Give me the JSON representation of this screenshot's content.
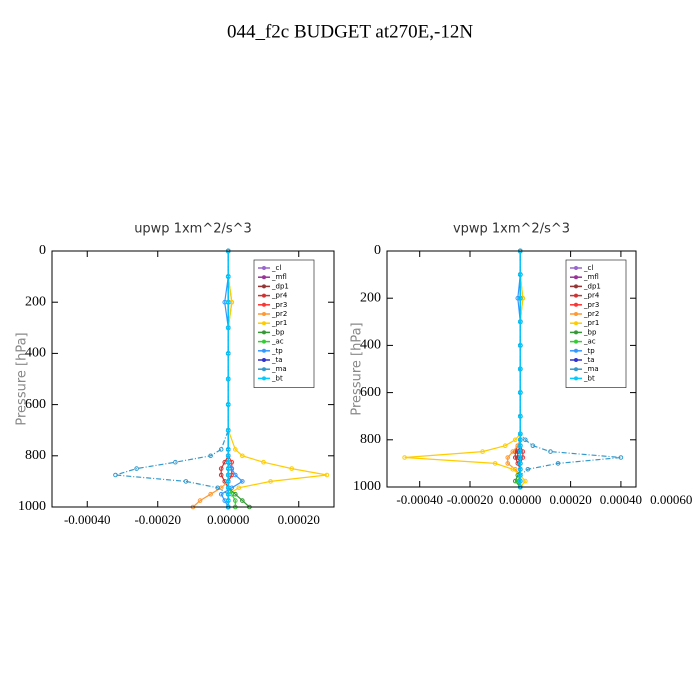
{
  "title": "044_f2c  BUDGET at270E,-12N",
  "chart_data": [
    {
      "type": "line",
      "title": "upwp  1xm^2/s^3",
      "ylabel": "Pressure [hPa]",
      "y": [
        0,
        100,
        200,
        300,
        400,
        500,
        600,
        700,
        775,
        800,
        825,
        850,
        875,
        900,
        925,
        950,
        975,
        1000
      ],
      "xlim": [
        -0.0005,
        0.0003
      ],
      "xticks": [
        {
          "value": -0.0004,
          "label": "-0.00040"
        },
        {
          "value": -0.0002,
          "label": "-0.00020"
        },
        {
          "value": 0,
          "label": "0.00000"
        },
        {
          "value": 0.0002,
          "label": "0.00020"
        }
      ],
      "ylim": [
        1000,
        0
      ],
      "yticks": [
        0,
        200,
        400,
        600,
        800,
        1000
      ],
      "series": [
        {
          "name": "_cl",
          "color": "#9966cc",
          "values": [
            0,
            0,
            0,
            0,
            0,
            0,
            0,
            0,
            0,
            0,
            0,
            0,
            0,
            0,
            0,
            0,
            0,
            0
          ]
        },
        {
          "name": "_mfl",
          "color": "#993399",
          "values": [
            0,
            0,
            0,
            0,
            0,
            0,
            0,
            0,
            0,
            0,
            0,
            0,
            0,
            0,
            0,
            0,
            0,
            0
          ]
        },
        {
          "name": "_dp1",
          "color": "#993333",
          "values": [
            0,
            0,
            0,
            0,
            0,
            0,
            0,
            0,
            0,
            0,
            0,
            1e-05,
            1e-05,
            0,
            0,
            0,
            0,
            0
          ]
        },
        {
          "name": "_pr4",
          "color": "#cc3333",
          "values": [
            0,
            0,
            0,
            0,
            0,
            0,
            0,
            0,
            0,
            0,
            -1e-05,
            -2e-05,
            -2e-05,
            -1e-05,
            0,
            0,
            0,
            0
          ]
        },
        {
          "name": "_pr3",
          "color": "#ff3333",
          "values": [
            0,
            0,
            0,
            0,
            0,
            0,
            0,
            0,
            0,
            0,
            1e-05,
            1e-05,
            1e-05,
            0,
            0,
            0,
            0,
            0
          ]
        },
        {
          "name": "_pr2",
          "color": "#ff9933",
          "values": [
            0,
            0,
            1e-05,
            0,
            0,
            0,
            0,
            0,
            0,
            0,
            0,
            0,
            0,
            0,
            -2e-05,
            -5e-05,
            -8e-05,
            -0.0001
          ]
        },
        {
          "name": "_pr1",
          "color": "#ffcc00",
          "values": [
            0,
            0,
            1e-05,
            0,
            0,
            0,
            0,
            0,
            2e-05,
            4e-05,
            0.0001,
            0.00018,
            0.00028,
            0.00012,
            3e-05,
            0,
            0,
            0
          ]
        },
        {
          "name": "_bp",
          "color": "#339933",
          "values": [
            0,
            0,
            0,
            0,
            0,
            0,
            0,
            0,
            0,
            0,
            0,
            0,
            0,
            0,
            0,
            2e-05,
            4e-05,
            6e-05
          ]
        },
        {
          "name": "_ac",
          "color": "#33cc33",
          "values": [
            0,
            0,
            0,
            0,
            0,
            0,
            0,
            0,
            0,
            0,
            0,
            0,
            0,
            0,
            0,
            1e-05,
            2e-05,
            2e-05
          ]
        },
        {
          "name": "_tp",
          "color": "#3399ff",
          "values": [
            0,
            0,
            -1e-05,
            0,
            0,
            0,
            0,
            0,
            0,
            0,
            0,
            1e-05,
            2e-05,
            4e-05,
            1e-05,
            -2e-05,
            -1e-05,
            0
          ]
        },
        {
          "name": "_ta",
          "color": "#3333cc",
          "values": [
            0,
            0,
            0,
            0,
            0,
            0,
            0,
            0,
            0,
            0,
            0,
            0,
            0,
            0,
            0,
            0,
            0,
            0
          ]
        },
        {
          "name": "_ma",
          "color": "#3399cc",
          "values": [
            0,
            0,
            0,
            0,
            0,
            0,
            0,
            0,
            -2e-05,
            -5e-05,
            -0.00015,
            -0.00026,
            -0.00032,
            -0.00012,
            -3e-05,
            0,
            0,
            0
          ]
        },
        {
          "name": "_bt",
          "color": "#00ccff",
          "values": [
            0,
            0,
            0,
            0,
            0,
            0,
            0,
            0,
            0,
            0,
            0,
            0,
            0,
            0,
            0,
            0,
            0,
            0
          ]
        }
      ]
    },
    {
      "type": "line",
      "title": "vpwp  1xm^2/s^3",
      "ylabel": "Pressure [hPa]",
      "y": [
        0,
        100,
        200,
        300,
        400,
        500,
        600,
        700,
        775,
        800,
        825,
        850,
        875,
        900,
        925,
        950,
        975,
        1000
      ],
      "xlim": [
        -0.00053,
        0.00046
      ],
      "xticks": [
        {
          "value": -0.0004,
          "label": "-0.00040"
        },
        {
          "value": -0.0002,
          "label": "-0.00020"
        },
        {
          "value": 0,
          "label": "0.00000"
        },
        {
          "value": 0.0002,
          "label": "0.00020"
        },
        {
          "value": 0.0004,
          "label": "0.00040"
        },
        {
          "value": 0.0006,
          "label": "0.00060"
        }
      ],
      "ylim": [
        1000,
        0
      ],
      "yticks": [
        0,
        200,
        400,
        600,
        800,
        1000
      ],
      "series": [
        {
          "name": "_cl",
          "color": "#9966cc",
          "values": [
            0,
            0,
            0,
            0,
            0,
            0,
            0,
            0,
            0,
            0,
            0,
            0,
            0,
            0,
            0,
            0,
            0,
            0
          ]
        },
        {
          "name": "_mfl",
          "color": "#993399",
          "values": [
            0,
            0,
            0,
            0,
            0,
            0,
            0,
            0,
            0,
            0,
            0,
            0,
            0,
            0,
            0,
            0,
            0,
            0
          ]
        },
        {
          "name": "_dp1",
          "color": "#993333",
          "values": [
            0,
            0,
            0,
            0,
            0,
            0,
            0,
            0,
            0,
            0,
            0,
            -1e-05,
            -1e-05,
            0,
            0,
            0,
            0,
            0
          ]
        },
        {
          "name": "_pr4",
          "color": "#cc3333",
          "values": [
            0,
            0,
            0,
            0,
            0,
            0,
            0,
            0,
            0,
            0,
            -1e-05,
            -2e-05,
            -2e-05,
            -1e-05,
            0,
            0,
            0,
            0
          ]
        },
        {
          "name": "_pr3",
          "color": "#ff3333",
          "values": [
            0,
            0,
            0,
            0,
            0,
            0,
            0,
            0,
            0,
            0,
            0,
            1e-05,
            1e-05,
            0,
            0,
            0,
            0,
            0
          ]
        },
        {
          "name": "_pr2",
          "color": "#ff9933",
          "values": [
            0,
            0,
            1e-05,
            0,
            0,
            0,
            0,
            0,
            0,
            0,
            -1e-05,
            -3e-05,
            -5e-05,
            -5e-05,
            -2e-05,
            0,
            0,
            0
          ]
        },
        {
          "name": "_pr1",
          "color": "#ffcc00",
          "values": [
            0,
            0,
            1e-05,
            0,
            0,
            0,
            0,
            0,
            0,
            -2e-05,
            -6e-05,
            -0.00015,
            -0.00046,
            -0.0001,
            -3e-05,
            0,
            2e-05,
            0
          ]
        },
        {
          "name": "_bp",
          "color": "#339933",
          "values": [
            0,
            0,
            0,
            0,
            0,
            0,
            0,
            0,
            0,
            0,
            0,
            0,
            0,
            0,
            0,
            -1e-05,
            -2e-05,
            0
          ]
        },
        {
          "name": "_ac",
          "color": "#33cc33",
          "values": [
            0,
            0,
            0,
            0,
            0,
            0,
            0,
            0,
            0,
            0,
            0,
            0,
            0,
            0,
            0,
            0,
            -1e-05,
            0
          ]
        },
        {
          "name": "_tp",
          "color": "#3399ff",
          "values": [
            0,
            0,
            -1e-05,
            0,
            0,
            0,
            0,
            0,
            0,
            0,
            0,
            0,
            0,
            0,
            0,
            0,
            0,
            0
          ]
        },
        {
          "name": "_ta",
          "color": "#3333cc",
          "values": [
            0,
            0,
            0,
            0,
            0,
            0,
            0,
            0,
            0,
            0,
            0,
            0,
            0,
            0,
            0,
            0,
            0,
            0
          ]
        },
        {
          "name": "_ma",
          "color": "#3399cc",
          "values": [
            0,
            0,
            0,
            0,
            0,
            0,
            0,
            0,
            0,
            2e-05,
            5e-05,
            0.00012,
            0.0004,
            0.00015,
            3e-05,
            0,
            0,
            0
          ]
        },
        {
          "name": "_bt",
          "color": "#00ccff",
          "values": [
            0,
            0,
            0,
            0,
            0,
            0,
            0,
            0,
            0,
            0,
            0,
            0,
            0,
            0,
            0,
            0,
            0,
            0
          ]
        }
      ]
    }
  ]
}
